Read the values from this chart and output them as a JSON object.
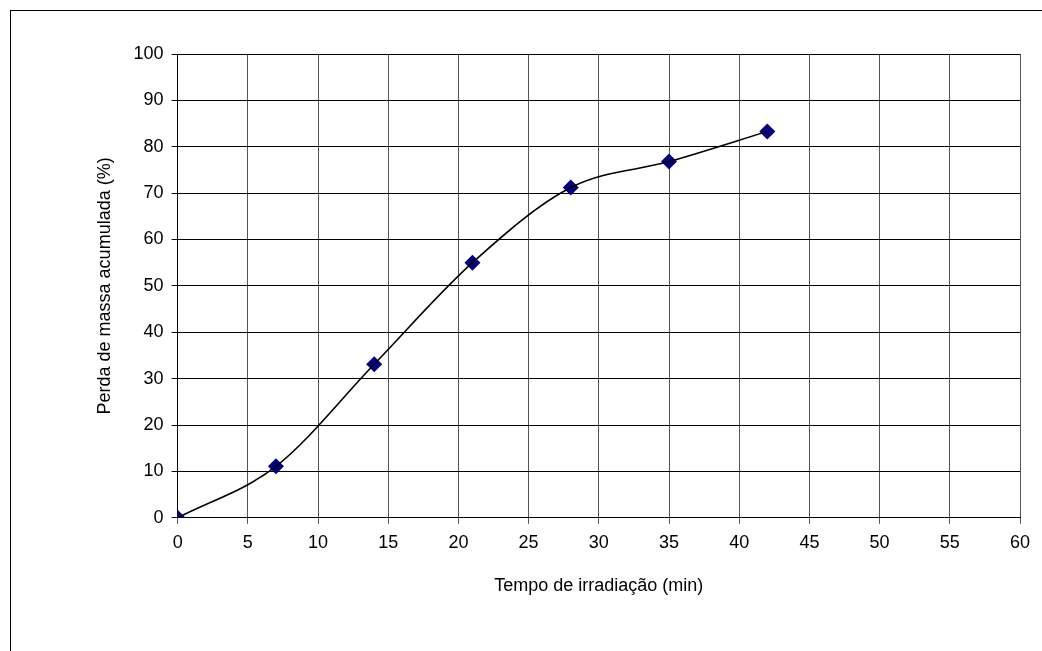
{
  "chart_data": {
    "type": "line",
    "xlabel": "Tempo de irradiação (min)",
    "ylabel": "Perda de massa acumulada (%)",
    "x": [
      0,
      7,
      14,
      21,
      28,
      35,
      42
    ],
    "series": [
      {
        "color": "#000000",
        "marker": "none",
        "values": [
          0,
          11.1,
          33.1,
          55,
          71.2,
          76.8,
          83.3
        ]
      },
      {
        "type": "scatter",
        "color": "#000080",
        "marker": "diamond",
        "values": [
          0,
          11.1,
          33.1,
          55,
          71.2,
          76.8,
          83.3
        ]
      }
    ],
    "xlim": [
      0,
      60
    ],
    "xticks": [
      0,
      5,
      10,
      15,
      20,
      25,
      30,
      35,
      40,
      45,
      50,
      55,
      60
    ],
    "ylim": [
      0,
      100
    ],
    "yticks": [
      0,
      10,
      20,
      30,
      40,
      50,
      60,
      70,
      80,
      90,
      100
    ],
    "grid": true,
    "legend": false
  }
}
